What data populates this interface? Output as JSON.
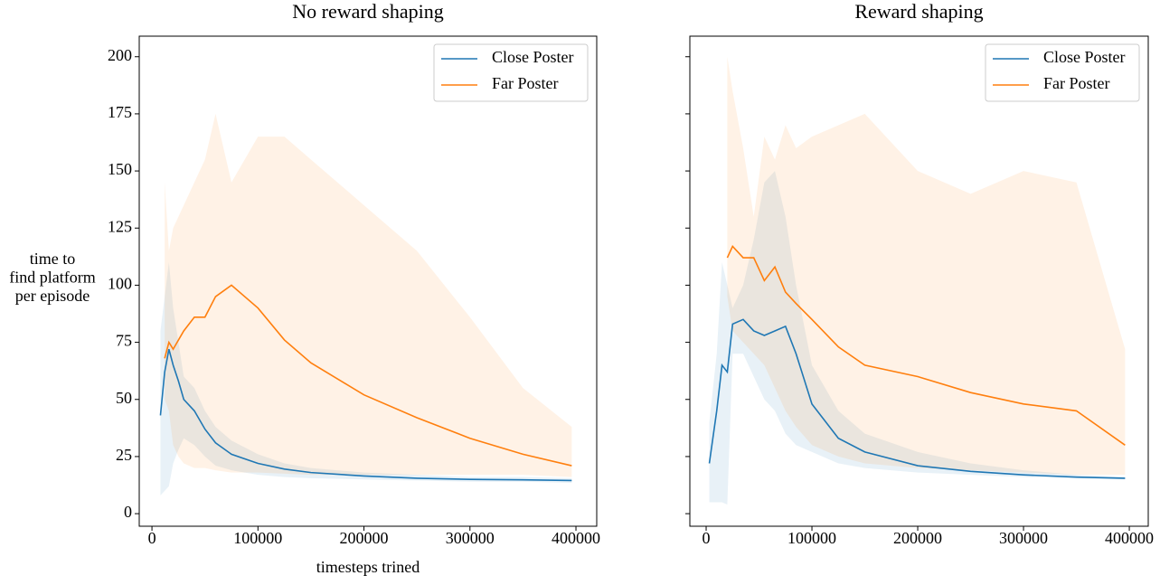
{
  "chart_data": [
    {
      "type": "line",
      "title": "No reward shaping",
      "xlabel": "timesteps trined",
      "ylabel": [
        "time to",
        "find platform",
        "per episode"
      ],
      "x": [
        8000,
        12000,
        16000,
        20000,
        25000,
        30000,
        40000,
        50000,
        60000,
        75000,
        100000,
        125000,
        150000,
        200000,
        250000,
        300000,
        350000,
        396000
      ],
      "series": [
        {
          "name": "Close Poster",
          "color": "#1f77b4",
          "values": [
            43,
            62,
            72,
            65,
            58,
            50,
            45,
            37,
            31,
            26,
            22,
            19.5,
            18,
            16.5,
            15.5,
            15,
            14.8,
            14.5
          ],
          "lower": [
            8,
            10,
            12,
            22,
            28,
            33,
            30,
            25,
            21,
            19,
            17,
            16,
            15.5,
            15,
            14.5,
            14,
            14,
            13.5
          ],
          "upper": [
            80,
            95,
            110,
            90,
            75,
            60,
            55,
            45,
            38,
            32,
            26,
            22,
            20,
            18,
            17,
            16,
            16,
            15.5
          ]
        },
        {
          "name": "Far Poster",
          "color": "#ff7f0e",
          "values": [
            null,
            68,
            75,
            72,
            76,
            80,
            86,
            86,
            95,
            100,
            90,
            76,
            66,
            52,
            42,
            33,
            26,
            21
          ],
          "lower": [
            null,
            50,
            45,
            30,
            25,
            22,
            20,
            20,
            19,
            18,
            18,
            17.5,
            17,
            17,
            17,
            17,
            17,
            16
          ],
          "upper": [
            null,
            145,
            115,
            125,
            130,
            135,
            145,
            155,
            175,
            145,
            165,
            165,
            155,
            135,
            115,
            86,
            55,
            38
          ]
        }
      ],
      "xlim": [
        -12000,
        419600
      ],
      "ylim": [
        -5.5,
        209
      ],
      "xticks": [
        0,
        100000,
        200000,
        300000,
        400000
      ],
      "yticks": [
        0,
        25,
        50,
        75,
        100,
        125,
        150,
        175,
        200
      ],
      "ytick_labels": true,
      "legend": "upper right"
    },
    {
      "type": "line",
      "title": "Reward shaping",
      "x": [
        3000,
        10000,
        15000,
        20000,
        25000,
        35000,
        45000,
        55000,
        65000,
        75000,
        85000,
        100000,
        125000,
        150000,
        200000,
        250000,
        300000,
        350000,
        396000
      ],
      "series": [
        {
          "name": "Close Poster",
          "color": "#1f77b4",
          "values": [
            22,
            45,
            65,
            62,
            83,
            85,
            80,
            78,
            80,
            82,
            70,
            48,
            33,
            27,
            21,
            18.5,
            17,
            16,
            15.5
          ],
          "lower": [
            5,
            5,
            5,
            4,
            70,
            70,
            60,
            50,
            45,
            35,
            30,
            27,
            22,
            20,
            18,
            17,
            16,
            15.5,
            15
          ],
          "upper": [
            40,
            70,
            110,
            100,
            90,
            100,
            120,
            145,
            150,
            130,
            100,
            65,
            45,
            35,
            27,
            22,
            19,
            17,
            16
          ]
        },
        {
          "name": "Far Poster",
          "color": "#ff7f0e",
          "values": [
            null,
            null,
            null,
            112,
            117,
            112,
            112,
            102,
            108,
            97,
            92,
            85,
            73,
            65,
            60,
            53,
            48,
            45,
            30
          ],
          "lower": [
            null,
            null,
            null,
            95,
            80,
            75,
            70,
            65,
            55,
            45,
            38,
            30,
            25,
            22,
            20,
            19,
            18,
            17,
            17
          ],
          "upper": [
            null,
            null,
            null,
            200,
            185,
            160,
            130,
            165,
            155,
            170,
            160,
            165,
            170,
            175,
            150,
            140,
            150,
            145,
            72
          ]
        }
      ],
      "xlim": [
        -15400,
        417900
      ],
      "ylim": [
        -5.5,
        209
      ],
      "xticks": [
        0,
        100000,
        200000,
        300000,
        400000
      ],
      "yticks": [
        0,
        25,
        50,
        75,
        100,
        125,
        150,
        175,
        200
      ],
      "ytick_labels": false,
      "legend": "upper right"
    }
  ]
}
